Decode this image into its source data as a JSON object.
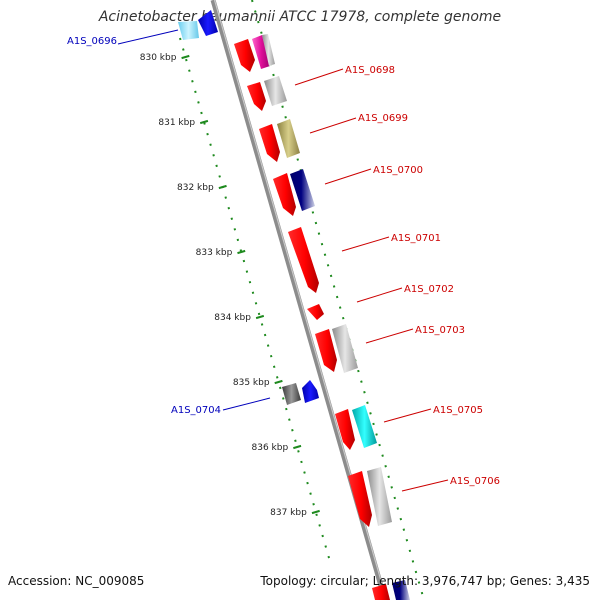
{
  "title": "Acinetobacter baumannii ATCC 17978, complete genome",
  "footer": {
    "accession": "Accession: NC_009085",
    "summary": "Topology: circular; Length: 3,976,747 bp; Genes: 3,435"
  },
  "colors": {
    "backbone": "#808080",
    "ruler": "#1e8a1e",
    "forward_label": "#cc0000",
    "reverse_label": "#0000bb"
  },
  "ticks": [
    "830 kbp",
    "831 kbp",
    "832 kbp",
    "833 kbp",
    "834 kbp",
    "835 kbp",
    "836 kbp",
    "837 kbp"
  ],
  "labels": [
    {
      "id": "A1S_0696",
      "text": "A1S_0696",
      "strand": "reverse"
    },
    {
      "id": "A1S_0698",
      "text": "A1S_0698",
      "strand": "forward"
    },
    {
      "id": "A1S_0699",
      "text": "A1S_0699",
      "strand": "forward"
    },
    {
      "id": "A1S_0700",
      "text": "A1S_0700",
      "strand": "forward"
    },
    {
      "id": "A1S_0701",
      "text": "A1S_0701",
      "strand": "forward"
    },
    {
      "id": "A1S_0702",
      "text": "A1S_0702",
      "strand": "forward"
    },
    {
      "id": "A1S_0703",
      "text": "A1S_0703",
      "strand": "forward"
    },
    {
      "id": "A1S_0704",
      "text": "A1S_0704",
      "strand": "reverse"
    },
    {
      "id": "A1S_0705",
      "text": "A1S_0705",
      "strand": "forward"
    },
    {
      "id": "A1S_0706",
      "text": "A1S_0706",
      "strand": "forward"
    }
  ]
}
